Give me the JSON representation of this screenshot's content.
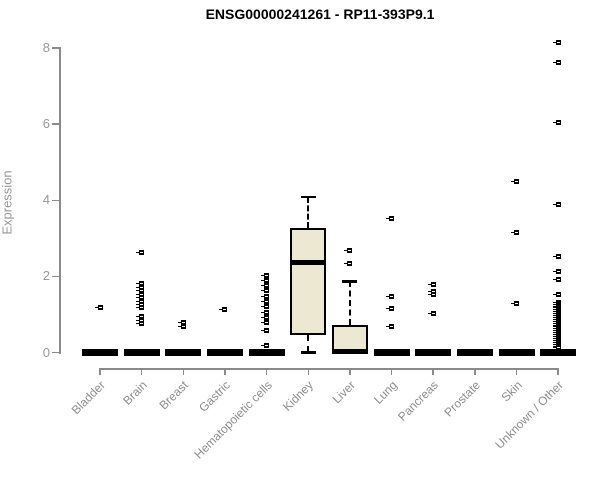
{
  "colors": {
    "box_fill": "#ece8d2",
    "box_stroke": "#000000",
    "axis": "#8a8a8a",
    "tick_label": "#979797",
    "category_label": "#8c8c8c",
    "title": "#000000"
  },
  "chart_data": {
    "type": "boxplot",
    "title": "ENSG00000241261 - RP11-393P9.1",
    "xlabel": "",
    "ylabel": "Expression",
    "ylim": [
      0,
      8.3
    ],
    "yticks": [
      0,
      2,
      4,
      6,
      8
    ],
    "grid": false,
    "legend": false,
    "categories": [
      "Bladder",
      "Brain",
      "Breast",
      "Gastric",
      "Hematopoietic cells",
      "Kidney",
      "Liver",
      "Lung",
      "Pancreas",
      "Prostate",
      "Skin",
      "Unknown / Other"
    ],
    "series": [
      {
        "name": "Bladder",
        "whisker_low": 0,
        "q1": 0,
        "median": 0,
        "q3": 0,
        "whisker_high": 0,
        "outliers": [
          1.19
        ]
      },
      {
        "name": "Brain",
        "whisker_low": 0,
        "q1": 0,
        "median": 0,
        "q3": 0,
        "whisker_high": 0,
        "outliers": [
          2.64,
          1.8,
          1.71,
          1.62,
          1.53,
          1.44,
          1.35,
          1.26,
          1.17,
          0.95,
          0.85,
          0.75
        ]
      },
      {
        "name": "Breast",
        "whisker_low": 0,
        "q1": 0,
        "median": 0,
        "q3": 0,
        "whisker_high": 0,
        "outliers": [
          0.8,
          0.68
        ]
      },
      {
        "name": "Gastric",
        "whisker_low": 0,
        "q1": 0,
        "median": 0,
        "q3": 0,
        "whisker_high": 0,
        "outliers": [
          1.13
        ]
      },
      {
        "name": "Hematopoietic cells",
        "whisker_low": 0,
        "q1": 0,
        "median": 0,
        "q3": 0,
        "whisker_high": 0,
        "outliers": [
          2.02,
          1.9,
          1.75,
          1.62,
          1.48,
          1.35,
          1.2,
          1.05,
          0.92,
          0.8,
          0.58,
          0.18
        ]
      },
      {
        "name": "Kidney",
        "whisker_low": 0,
        "q1": 0.45,
        "median": 2.36,
        "q3": 3.27,
        "whisker_high": 4.08,
        "outliers": []
      },
      {
        "name": "Liver",
        "whisker_low": 0,
        "q1": 0,
        "median": 0.03,
        "q3": 0.73,
        "whisker_high": 1.87,
        "outliers": [
          2.68,
          2.35
        ]
      },
      {
        "name": "Lung",
        "whisker_low": 0,
        "q1": 0,
        "median": 0,
        "q3": 0,
        "whisker_high": 0,
        "outliers": [
          3.51,
          1.47,
          1.15,
          0.68
        ]
      },
      {
        "name": "Pancreas",
        "whisker_low": 0,
        "q1": 0,
        "median": 0,
        "q3": 0,
        "whisker_high": 0,
        "outliers": [
          1.79,
          1.6,
          1.53,
          1.03
        ]
      },
      {
        "name": "Prostate",
        "whisker_low": 0,
        "q1": 0,
        "median": 0,
        "q3": 0,
        "whisker_high": 0,
        "outliers": []
      },
      {
        "name": "Skin",
        "whisker_low": 0,
        "q1": 0,
        "median": 0,
        "q3": 0,
        "whisker_high": 0,
        "outliers": [
          4.5,
          3.16,
          1.28
        ]
      },
      {
        "name": "Unknown / Other",
        "whisker_low": 0,
        "q1": 0,
        "median": 0,
        "q3": 0,
        "whisker_high": 0,
        "outliers": [
          8.14,
          7.63,
          6.03,
          3.88,
          2.53,
          2.13,
          1.91,
          1.52,
          1.32,
          1.27,
          1.22,
          1.17,
          1.12,
          1.07,
          1.02,
          0.97,
          0.92,
          0.87,
          0.82,
          0.77,
          0.72,
          0.67,
          0.62,
          0.57,
          0.52,
          0.47,
          0.42,
          0.37,
          0.32,
          0.27,
          0.22,
          0.17,
          0.12
        ]
      }
    ]
  }
}
